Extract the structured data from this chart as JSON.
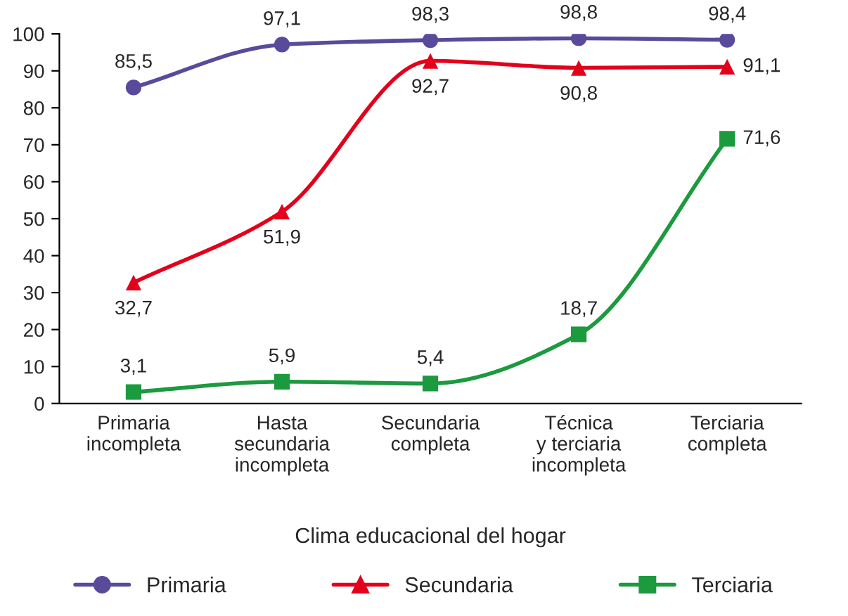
{
  "chart_data": {
    "type": "line",
    "xlabel": "Clima educacional del hogar",
    "categories": [
      "Primaria\nincompleta",
      "Hasta\nsecundaria\nincompleta",
      "Secundaria\ncompleta",
      "Técnica\ny terciaria\nincompleta",
      "Terciaria\ncompleta"
    ],
    "series": [
      {
        "name": "Primaria",
        "color": "#5a4a9c",
        "marker": "circle",
        "values": [
          85.5,
          97.1,
          98.3,
          98.8,
          98.4
        ],
        "value_labels": [
          "85,5",
          "97,1",
          "98,3",
          "98,8",
          "98,4"
        ]
      },
      {
        "name": "Secundaria",
        "color": "#e3001b",
        "marker": "triangle",
        "values": [
          32.7,
          51.9,
          92.7,
          90.8,
          91.1
        ],
        "value_labels": [
          "32,7",
          "51,9",
          "92,7",
          "90,8",
          "91,1"
        ]
      },
      {
        "name": "Terciaria",
        "color": "#1b9a3e",
        "marker": "square",
        "values": [
          3.1,
          5.9,
          5.4,
          18.7,
          71.6
        ],
        "value_labels": [
          "3,1",
          "5,9",
          "5,4",
          "18,7",
          "71,6"
        ]
      }
    ],
    "ylim": [
      0,
      100
    ],
    "yticks": [
      0,
      10,
      20,
      30,
      40,
      50,
      60,
      70,
      80,
      90,
      100
    ],
    "grid": false,
    "legend": "bottom"
  }
}
